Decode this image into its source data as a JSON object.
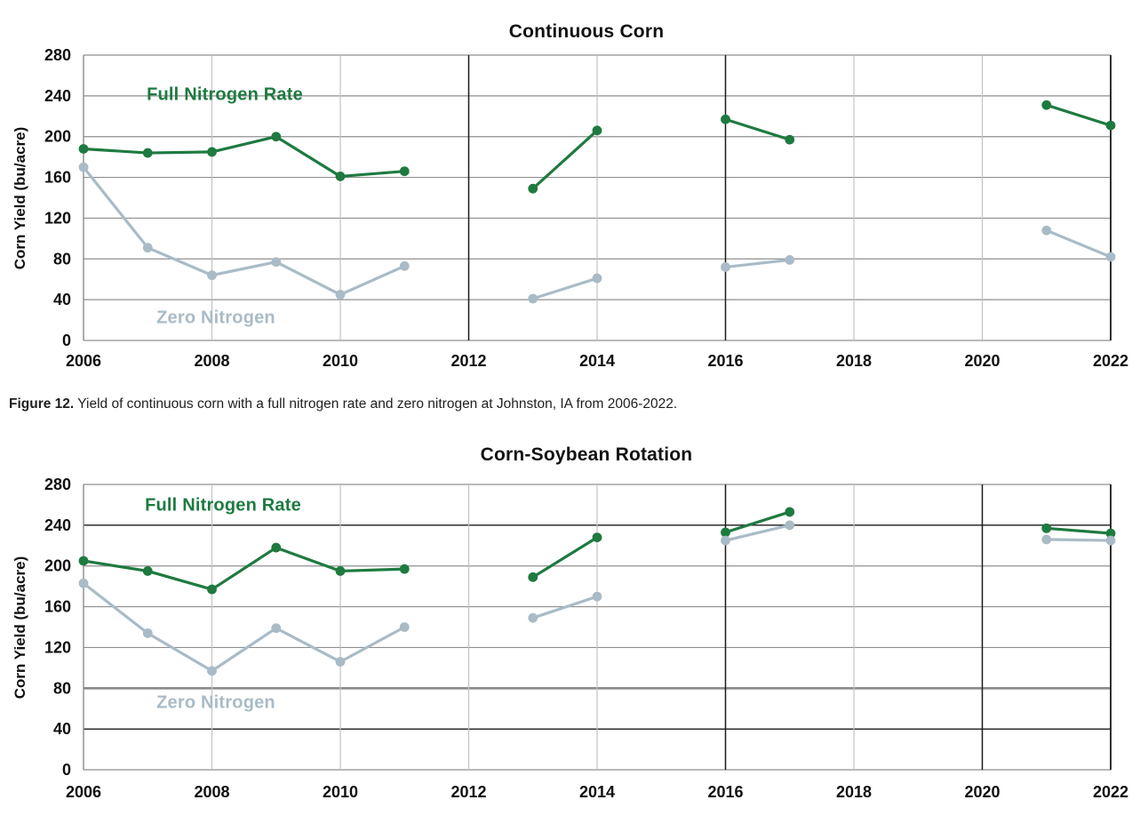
{
  "figure": {
    "caption_bold": "Figure 12.",
    "caption_rest": " Yield of continuous corn with a full nitrogen rate and zero nitrogen at Johnston, IA from 2006-2022."
  },
  "colors": {
    "full_nitrogen_green": "#1e7a40",
    "zero_nitrogen_gray": "#a9bbc6",
    "grid_horizontal": "#8f8f8f",
    "grid_vertical": "#c3c3c3",
    "grid_dark": "#1a1a1a",
    "tick_text": "#0f0f0f"
  },
  "chart_data": [
    {
      "type": "line",
      "title": "Continuous Corn",
      "xlabel": "",
      "ylabel": "Corn Yield (bu/acre)",
      "xlim": [
        2006,
        2022
      ],
      "ylim": [
        0,
        280
      ],
      "yticks": [
        0,
        40,
        80,
        120,
        160,
        200,
        240,
        280
      ],
      "xticks": [
        2006,
        2008,
        2010,
        2012,
        2014,
        2016,
        2018,
        2020,
        2022
      ],
      "grid": "on",
      "legend": "inline labels inside plot",
      "x": [
        2006,
        2007,
        2008,
        2009,
        2010,
        2011,
        2013,
        2014,
        2016,
        2017,
        2021,
        2022
      ],
      "series": [
        {
          "name": "Full Nitrogen Rate",
          "color": "#1e7a40",
          "values": [
            188,
            184,
            185,
            200,
            161,
            166,
            149,
            206,
            217,
            197,
            231,
            211
          ]
        },
        {
          "name": "Zero Nitrogen",
          "color": "#a9bbc6",
          "values": [
            170,
            91,
            64,
            77,
            45,
            73,
            41,
            61,
            72,
            79,
            108,
            82
          ]
        }
      ],
      "annotations": [
        {
          "text": "Full Nitrogen Rate",
          "color": "#1e7a40"
        },
        {
          "text": "Zero Nitrogen",
          "color": "#a9bbc6"
        }
      ]
    },
    {
      "type": "line",
      "title": "Corn-Soybean Rotation",
      "xlabel": "",
      "ylabel": "Corn Yield (bu/acre)",
      "xlim": [
        2006,
        2022
      ],
      "ylim": [
        0,
        280
      ],
      "yticks": [
        0,
        40,
        80,
        120,
        160,
        200,
        240,
        280
      ],
      "xticks": [
        2006,
        2008,
        2010,
        2012,
        2014,
        2016,
        2018,
        2020,
        2022
      ],
      "grid": "on",
      "legend": "inline labels inside plot",
      "x": [
        2006,
        2007,
        2008,
        2009,
        2010,
        2011,
        2013,
        2014,
        2016,
        2017,
        2021,
        2022
      ],
      "series": [
        {
          "name": "Full Nitrogen Rate",
          "color": "#1e7a40",
          "values": [
            205,
            195,
            177,
            218,
            195,
            197,
            189,
            228,
            233,
            253,
            237,
            232
          ]
        },
        {
          "name": "Zero Nitrogen",
          "color": "#a9bbc6",
          "values": [
            183,
            134,
            97,
            139,
            106,
            140,
            149,
            170,
            225,
            240,
            226,
            225
          ]
        }
      ],
      "annotations": [
        {
          "text": "Full Nitrogen Rate",
          "color": "#1e7a40"
        },
        {
          "text": "Zero Nitrogen",
          "color": "#a9bbc6"
        }
      ]
    }
  ]
}
